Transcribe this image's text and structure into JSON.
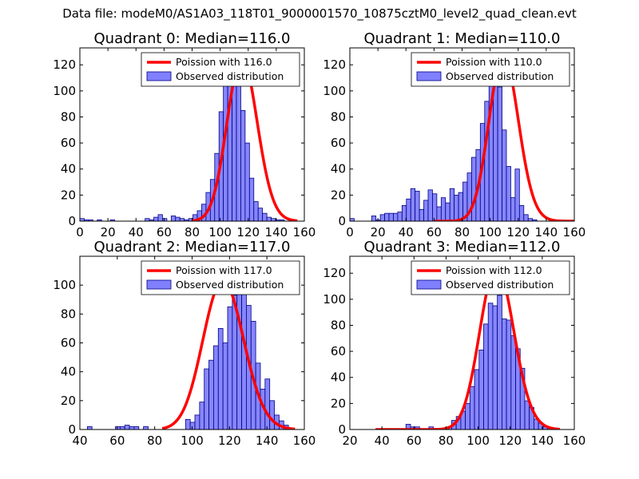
{
  "figure": {
    "title": "Data file: modeM0/AS1A03_118T01_9000001570_10875cztM0_level2_quad_clean.evt",
    "colors": {
      "hist_fill": "#8080ff",
      "hist_edge": "#000080",
      "poisson": "#ff0000"
    }
  },
  "chart_data": [
    {
      "type": "bar",
      "title": "Quadrant 0: Median=116.0",
      "xlim": [
        0,
        160
      ],
      "ylim": [
        0,
        133
      ],
      "xticks": [
        0,
        20,
        40,
        60,
        80,
        100,
        120,
        140,
        160
      ],
      "yticks": [
        0,
        20,
        40,
        60,
        80,
        100,
        120
      ],
      "legend": {
        "location": "top-right",
        "line_label": "Poission with 116.0",
        "bar_label": "Observed distribution"
      },
      "poisson_mean": 116.0,
      "poisson_scale": 3380,
      "poisson_range": [
        80,
        155
      ],
      "bins": {
        "start": 0,
        "width": 3.1,
        "values": [
          2,
          1,
          1,
          0,
          1,
          0,
          0,
          1,
          0,
          0,
          0,
          0,
          0,
          0,
          0,
          2,
          1,
          3,
          5,
          2,
          0,
          4,
          3,
          2,
          1,
          2,
          5,
          8,
          13,
          22,
          32,
          52,
          84,
          112,
          127,
          120,
          111,
          85,
          60,
          33,
          15,
          10,
          6,
          3,
          2,
          1,
          1,
          0,
          0
        ]
      }
    },
    {
      "type": "bar",
      "title": "Quadrant 1: Median=110.0",
      "xlim": [
        0,
        160
      ],
      "ylim": [
        0,
        133
      ],
      "xticks": [
        0,
        20,
        40,
        60,
        80,
        100,
        120,
        140,
        160
      ],
      "yticks": [
        0,
        20,
        40,
        60,
        80,
        100,
        120
      ],
      "legend": {
        "location": "top-right",
        "line_label": "Poission with 110.0",
        "bar_label": "Observed distribution"
      },
      "poisson_mean": 110.0,
      "poisson_scale": 3345,
      "poisson_range": [
        60,
        160
      ],
      "bins": {
        "start": 0,
        "width": 3.1,
        "values": [
          2,
          0,
          0,
          0,
          0,
          4,
          1,
          5,
          6,
          6,
          6,
          7,
          12,
          17,
          25,
          23,
          9,
          16,
          24,
          21,
          11,
          18,
          14,
          25,
          20,
          22,
          30,
          37,
          49,
          55,
          75,
          92,
          110,
          127,
          103,
          70,
          42,
          18,
          40,
          12,
          5,
          2,
          1,
          0
        ]
      }
    },
    {
      "type": "bar",
      "title": "Quadrant 2: Median=117.0",
      "xlim": [
        40,
        160
      ],
      "ylim": [
        0,
        120
      ],
      "xticks": [
        40,
        60,
        80,
        100,
        120,
        140,
        160
      ],
      "yticks": [
        0,
        20,
        40,
        60,
        80,
        100
      ],
      "legend": {
        "location": "top-right",
        "line_label": "Poission with 117.0",
        "bar_label": "Observed distribution"
      },
      "poisson_mean": 117.0,
      "poisson_scale": 2800,
      "poisson_range": [
        84,
        155
      ],
      "bins": {
        "start": 44,
        "width": 2.5,
        "values": [
          2,
          0,
          0,
          0,
          0,
          0,
          2,
          2,
          3,
          2,
          2,
          0,
          2,
          0,
          0,
          0,
          0,
          0,
          0,
          0,
          0,
          7,
          5,
          10,
          19,
          42,
          48,
          58,
          70,
          60,
          85,
          93,
          110,
          102,
          86,
          75,
          46,
          28,
          35,
          20,
          10,
          6,
          3,
          1,
          0
        ]
      }
    },
    {
      "type": "bar",
      "title": "Quadrant 3: Median=112.0",
      "xlim": [
        20,
        160
      ],
      "ylim": [
        0,
        133
      ],
      "xticks": [
        20,
        40,
        60,
        80,
        100,
        120,
        140,
        160
      ],
      "yticks": [
        0,
        20,
        40,
        60,
        80,
        100,
        120
      ],
      "legend": {
        "location": "top-right",
        "line_label": "Poission with 112.0",
        "bar_label": "Observed distribution"
      },
      "poisson_mean": 112.0,
      "poisson_scale": 3320,
      "poisson_range": [
        36,
        151
      ],
      "bins": {
        "start": 55,
        "width": 2.85,
        "values": [
          4,
          2,
          2,
          0,
          0,
          2,
          0,
          1,
          0,
          2,
          7,
          10,
          14,
          20,
          33,
          46,
          61,
          81,
          97,
          95,
          103,
          85,
          84,
          72,
          62,
          47,
          22,
          17,
          8,
          5,
          2,
          1,
          0
        ]
      }
    }
  ]
}
